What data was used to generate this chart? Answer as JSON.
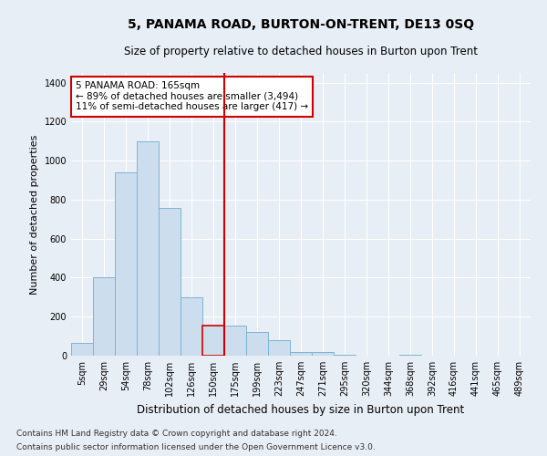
{
  "title": "5, PANAMA ROAD, BURTON-ON-TRENT, DE13 0SQ",
  "subtitle": "Size of property relative to detached houses in Burton upon Trent",
  "xlabel": "Distribution of detached houses by size in Burton upon Trent",
  "ylabel": "Number of detached properties",
  "footnote1": "Contains HM Land Registry data © Crown copyright and database right 2024.",
  "footnote2": "Contains public sector information licensed under the Open Government Licence v3.0.",
  "bar_labels": [
    "5sqm",
    "29sqm",
    "54sqm",
    "78sqm",
    "102sqm",
    "126sqm",
    "150sqm",
    "175sqm",
    "199sqm",
    "223sqm",
    "247sqm",
    "271sqm",
    "295sqm",
    "320sqm",
    "344sqm",
    "368sqm",
    "392sqm",
    "416sqm",
    "441sqm",
    "465sqm",
    "489sqm"
  ],
  "bar_values": [
    65,
    400,
    940,
    1100,
    760,
    300,
    155,
    155,
    120,
    80,
    20,
    20,
    5,
    0,
    0,
    5,
    0,
    0,
    0,
    0,
    0
  ],
  "bar_color": "#ccdded",
  "bar_edge_color": "#7fb3d3",
  "highlight_bar_index": 6,
  "highlight_bar_edge_color": "#cc0000",
  "vline_color": "#cc0000",
  "annotation_text": "5 PANAMA ROAD: 165sqm\n← 89% of detached houses are smaller (3,494)\n11% of semi-detached houses are larger (417) →",
  "annotation_box_facecolor": "#ffffff",
  "annotation_box_edgecolor": "#cc0000",
  "ylim": [
    0,
    1450
  ],
  "yticks": [
    0,
    200,
    400,
    600,
    800,
    1000,
    1200,
    1400
  ],
  "bg_color": "#e8eef5",
  "plot_bg_color": "#e8eef5",
  "grid_color": "#ffffff",
  "title_fontsize": 10,
  "subtitle_fontsize": 8.5,
  "ylabel_fontsize": 8,
  "xlabel_fontsize": 8.5,
  "tick_fontsize": 7,
  "footnote_fontsize": 6.5
}
